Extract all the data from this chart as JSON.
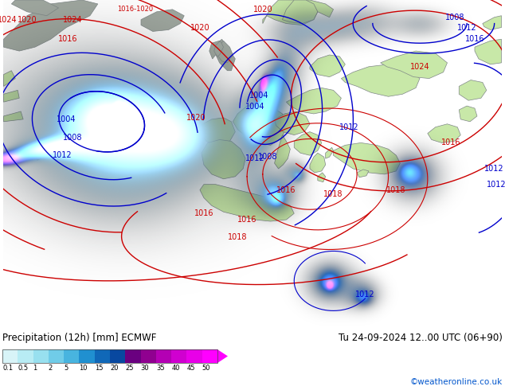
{
  "title_left": "Precipitation (12h) [mm] ECMWF",
  "title_right": "Tu 24-09-2024 12..00 UTC (06+90)",
  "credit": "©weatheronline.co.uk",
  "colorbar_values": [
    0.1,
    0.5,
    1,
    2,
    5,
    10,
    15,
    20,
    25,
    30,
    35,
    40,
    45,
    50
  ],
  "colorbar_colors": [
    "#d8f4f8",
    "#b8ecf4",
    "#98e0ef",
    "#70cce8",
    "#48b4df",
    "#2090d0",
    "#1068b8",
    "#0848a0",
    "#6a0080",
    "#900090",
    "#b400b4",
    "#d000d0",
    "#e800e8",
    "#ff00ff"
  ],
  "ocean_color": "#dce8f0",
  "land_color": "#c8e8a8",
  "land_europe_color": "#d0eeaa",
  "gray_color": "#a0a8a0",
  "fig_width": 6.34,
  "fig_height": 4.9,
  "dpi": 100
}
